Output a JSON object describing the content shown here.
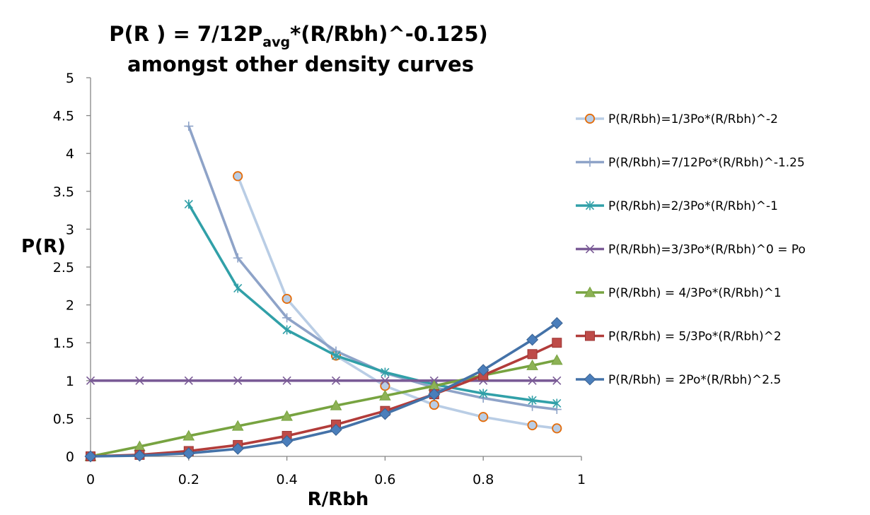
{
  "chart_data": {
    "type": "line",
    "title": {
      "line1_prefix": "P(R ) = 7/12P",
      "line1_subscript": "avg",
      "line1_suffix": "*(R/Rbh)^-0.125)",
      "line2": "amongst other density curves"
    },
    "xlabel": "R/Rbh",
    "ylabel": "P(R)",
    "xlim": [
      0,
      1
    ],
    "ylim": [
      0,
      5
    ],
    "xticks": [
      0,
      0.2,
      0.4,
      0.6,
      0.8,
      1
    ],
    "xtick_labels": [
      "0",
      "0.2",
      "0.4",
      "0.6",
      "0.8",
      "1"
    ],
    "yticks": [
      0,
      0.5,
      1,
      1.5,
      2,
      2.5,
      3,
      3.5,
      4,
      4.5,
      5
    ],
    "ytick_labels": [
      "0",
      "0.5",
      "1",
      "1.5",
      "2",
      "2.5",
      "3",
      "3.5",
      "4",
      "4.5",
      "5"
    ],
    "grid": false,
    "legend_position": "right",
    "series": [
      {
        "name": "P(R/Rbh)=1/3Po*(R/Rbh)^-2",
        "color": "#b9cde5",
        "marker": "circle",
        "marker_fill": "#b9cde5",
        "marker_stroke": "#e46c0a",
        "x": [
          0.3,
          0.4,
          0.5,
          0.6,
          0.7,
          0.8,
          0.9,
          0.95
        ],
        "y": [
          3.7,
          2.08,
          1.33,
          0.93,
          0.68,
          0.52,
          0.41,
          0.37
        ]
      },
      {
        "name": "P(R/Rbh)=7/12Po*(R/Rbh)^-1.25",
        "color": "#8ea3c8",
        "marker": "plus",
        "marker_fill": "none",
        "marker_stroke": "#8ea3c8",
        "x": [
          0.2,
          0.3,
          0.4,
          0.5,
          0.6,
          0.7,
          0.8,
          0.9,
          0.95
        ],
        "y": [
          4.36,
          2.62,
          1.83,
          1.39,
          1.1,
          0.91,
          0.77,
          0.66,
          0.62
        ]
      },
      {
        "name": "P(R/Rbh)=2/3Po*(R/Rbh)^-1",
        "color": "#31a0a8",
        "marker": "asterisk",
        "marker_fill": "none",
        "marker_stroke": "#31a0a8",
        "x": [
          0.2,
          0.3,
          0.4,
          0.5,
          0.6,
          0.7,
          0.8,
          0.9,
          0.95
        ],
        "y": [
          3.33,
          2.22,
          1.67,
          1.33,
          1.11,
          0.95,
          0.83,
          0.74,
          0.7
        ]
      },
      {
        "name": "P(R/Rbh)=3/3Po*(R/Rbh)^0 = Po",
        "color": "#7a5b96",
        "marker": "x",
        "marker_fill": "none",
        "marker_stroke": "#7a5b96",
        "x": [
          0,
          0.1,
          0.2,
          0.3,
          0.4,
          0.5,
          0.6,
          0.7,
          0.8,
          0.9,
          0.95
        ],
        "y": [
          1,
          1,
          1,
          1,
          1,
          1,
          1,
          1,
          1,
          1,
          1
        ]
      },
      {
        "name": "P(R/Rbh) = 4/3Po*(R/Rbh)^1",
        "color": "#77a340",
        "marker": "triangle",
        "marker_fill": "#8db255",
        "marker_stroke": "#77a340",
        "x": [
          0,
          0.1,
          0.2,
          0.3,
          0.4,
          0.5,
          0.6,
          0.7,
          0.8,
          0.9,
          0.95
        ],
        "y": [
          0,
          0.13,
          0.27,
          0.4,
          0.53,
          0.67,
          0.8,
          0.93,
          1.07,
          1.2,
          1.27
        ]
      },
      {
        "name": "P(R/Rbh) = 5/3Po*(R/Rbh)^2",
        "color": "#b23c3a",
        "marker": "square",
        "marker_fill": "#be4b48",
        "marker_stroke": "#9c3533",
        "x": [
          0,
          0.1,
          0.2,
          0.3,
          0.4,
          0.5,
          0.6,
          0.7,
          0.8,
          0.9,
          0.95
        ],
        "y": [
          0,
          0.02,
          0.07,
          0.15,
          0.27,
          0.42,
          0.6,
          0.82,
          1.07,
          1.35,
          1.5
        ]
      },
      {
        "name": "P(R/Rbh) = 2Po*(R/Rbh)^2.5",
        "color": "#4472a8",
        "marker": "diamond",
        "marker_fill": "#4a7ebb",
        "marker_stroke": "#3a6190",
        "x": [
          0,
          0.1,
          0.2,
          0.3,
          0.4,
          0.5,
          0.6,
          0.7,
          0.8,
          0.9,
          0.95
        ],
        "y": [
          0,
          0.01,
          0.04,
          0.1,
          0.2,
          0.35,
          0.56,
          0.82,
          1.14,
          1.54,
          1.76
        ]
      }
    ]
  }
}
